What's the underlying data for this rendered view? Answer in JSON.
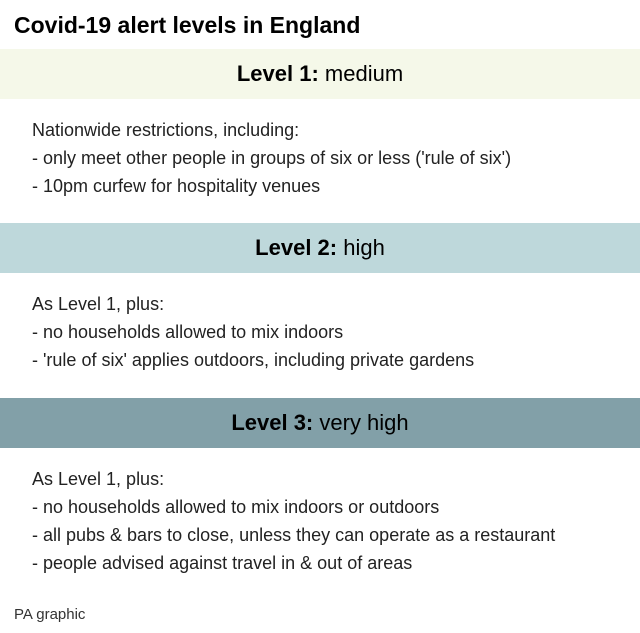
{
  "title": "Covid-19 alert levels in England",
  "credit": "PA graphic",
  "levels": [
    {
      "label": "Level 1:",
      "severity": "medium",
      "header_bg": "#f5f8e9",
      "intro": "Nationwide restrictions, including:",
      "bullets": [
        "- only meet other people in groups of six or less ('rule of six')",
        "- 10pm curfew for hospitality venues"
      ]
    },
    {
      "label": "Level 2:",
      "severity": "high",
      "header_bg": "#bed8db",
      "intro": "As Level 1, plus:",
      "bullets": [
        "- no households allowed to mix indoors",
        "- 'rule of six' applies outdoors, including private gardens"
      ]
    },
    {
      "label": "Level 3:",
      "severity": "very high",
      "header_bg": "#82a0a8",
      "intro": "As Level 1, plus:",
      "bullets": [
        "- no households allowed to mix indoors or outdoors",
        "- all pubs & bars to close, unless they can operate as a restaurant",
        "- people advised against travel in & out of areas"
      ]
    }
  ]
}
